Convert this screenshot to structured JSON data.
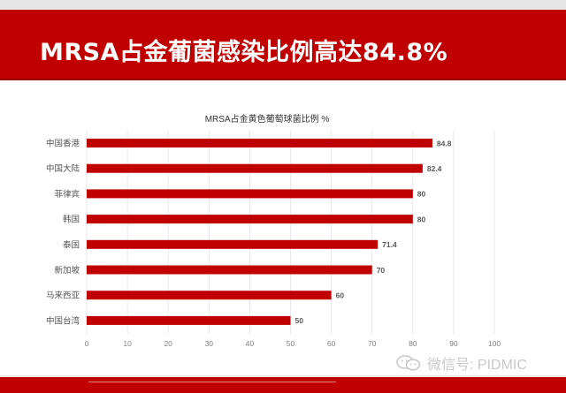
{
  "header": {
    "title": "MRSA占金葡菌感染比例高达84.8%"
  },
  "watermark": {
    "text": "微信号: PIDMIC",
    "icon": "wechat-icon"
  },
  "colors": {
    "brand_red": "#c00000",
    "bar": "#c00000",
    "watermark": "#c9c9c9"
  },
  "chart_data": {
    "type": "bar",
    "orientation": "horizontal",
    "title": "MRSA占金黄色葡萄球菌比例 %",
    "categories": [
      "中国香港",
      "中国大陆",
      "菲律宾",
      "韩国",
      "泰国",
      "新加坡",
      "马来西亚",
      "中国台湾"
    ],
    "values": [
      84.8,
      82.4,
      80,
      80,
      71.4,
      70,
      60,
      50
    ],
    "data_labels": [
      "84.8",
      "82.4",
      "80",
      "80",
      "71.4",
      "70",
      "60",
      "50"
    ],
    "xlim": [
      0,
      100
    ],
    "xticks": [
      0,
      10,
      20,
      30,
      40,
      50,
      60,
      70,
      80,
      90,
      100
    ],
    "xlabel": "",
    "ylabel": "",
    "grid": true,
    "legend": "none"
  }
}
